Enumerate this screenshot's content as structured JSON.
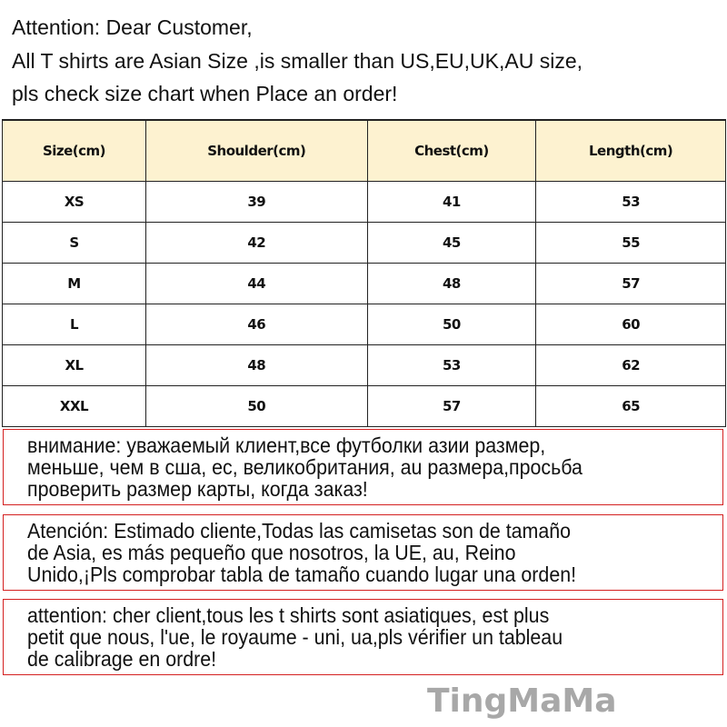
{
  "intro": {
    "lines": [
      "Attention: Dear Customer,",
      "All T shirts are  Asian Size ,is smaller than US,EU,UK,AU size,",
      "pls check size chart when Place an order!"
    ]
  },
  "size_table": {
    "headers": [
      "Size(cm)",
      "Shoulder(cm)",
      "Chest(cm)",
      "Length(cm)"
    ],
    "rows": [
      [
        "XS",
        "39",
        "41",
        "53"
      ],
      [
        "S",
        "42",
        "45",
        "55"
      ],
      [
        "M",
        "44",
        "48",
        "57"
      ],
      [
        "L",
        "46",
        "50",
        "60"
      ],
      [
        "XL",
        "48",
        "53",
        "62"
      ],
      [
        "XXL",
        "50",
        "57",
        "65"
      ]
    ],
    "header_bg": "#fdf2d0"
  },
  "notices": [
    {
      "lang": "ru",
      "lines": [
        "внимание: уважаемый клиент,все футболки азии размер,",
        "меньше, чем в сша, ес, великобритания, au размера,просьба",
        "проверить размер карты, когда заказ!"
      ]
    },
    {
      "lang": "es",
      "lines": [
        "Atención: Estimado cliente,Todas las camisetas son de tamaño",
        "de Asia, es más pequeño que nosotros, la UE, au, Reino",
        "Unido,¡Pls comprobar tabla de tamaño cuando lugar una orden!"
      ]
    },
    {
      "lang": "fr",
      "lines": [
        "attention: cher client,tous les t shirts sont asiatiques, est plus",
        "petit que nous, l'ue, le royaume - uni, ua,pls vérifier un tableau",
        "de calibrage en ordre!"
      ]
    }
  ],
  "notice_border_color": "#d42020",
  "watermark": "TingMaMa"
}
